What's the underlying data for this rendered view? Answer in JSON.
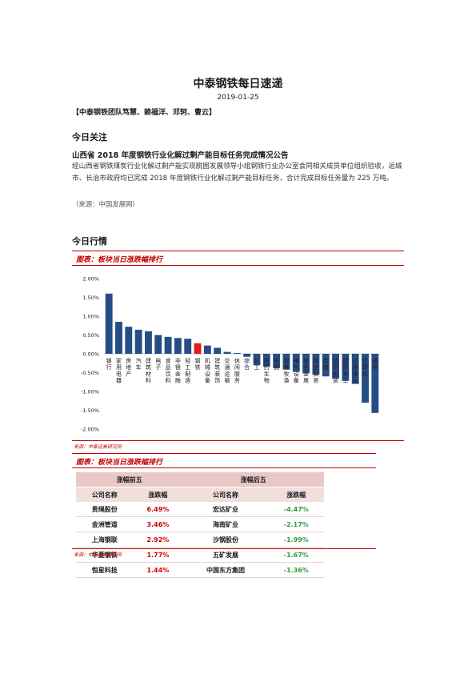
{
  "header": {
    "title": "中泰钢铁每日速递",
    "date": "2019-01-25",
    "authors": "【中泰钢铁团队笃慧、赖福洋、邓轲、曹云】"
  },
  "focus": {
    "heading": "今日关注",
    "news_title": "山西省 2018 年度钢铁行业化解过剩产能目标任务完成情况公告",
    "news_body": "经山西省钢铁煤炭行业化解过剩产能实现脱困发展领导小组钢铁行业办公室会同相关成员单位组织验收，运城市、长治市政府均已完成 2018 年度钢铁行业化解过剩产能目标任务，合计完成目标任务量为 225 万吨。",
    "news_source": "（来源：中国发展网）"
  },
  "market": {
    "heading": "今日行情",
    "figure1_label": "图表：板块当日涨跌幅排行",
    "figure1_source": "来源：中泰证券研究所",
    "figure2_label": "图表：板块当日涨跌幅排行",
    "figure2_source": "来源：中泰证券研究所"
  },
  "chart_data": {
    "type": "bar",
    "categories": [
      "银行",
      "家用电器",
      "房地产",
      "汽车",
      "建筑材料",
      "电子",
      "食品饮料",
      "非银金融",
      "轻工制造",
      "钢铁",
      "机械设备",
      "建筑装饰",
      "交通运输",
      "休闲服务",
      "综合",
      "化工",
      "医药生物",
      "采掘",
      "农林牧渔",
      "电气设备",
      "有色金属",
      "商业贸易",
      "传媒",
      "纺织服装",
      "国防军工",
      "公用事业",
      "计算机",
      "通信"
    ],
    "values": [
      1.6,
      0.85,
      0.72,
      0.64,
      0.6,
      0.5,
      0.45,
      0.42,
      0.4,
      0.28,
      0.22,
      0.16,
      0.05,
      0.02,
      -0.08,
      -0.3,
      -0.34,
      -0.38,
      -0.42,
      -0.48,
      -0.52,
      -0.56,
      -0.6,
      -0.66,
      -0.72,
      -0.8,
      -1.3,
      -1.57
    ],
    "highlight": "钢铁",
    "colors": {
      "bar": "#264d86",
      "highlight": "#e31a1a"
    },
    "yticks": [
      "2.00%",
      "1.50%",
      "1.00%",
      "0.50%",
      "0.00%",
      "-0.50%",
      "-1.00%",
      "-1.50%",
      "-2.00%"
    ],
    "ylim": [
      -2.0,
      2.0
    ]
  },
  "ranking": {
    "top_heading": "涨幅前五",
    "bottom_heading": "涨幅后五",
    "col_name": "公司名称",
    "col_change": "涨跌幅",
    "top": [
      {
        "name": "贵绳股份",
        "change": "6.49%"
      },
      {
        "name": "金洲管道",
        "change": "3.46%"
      },
      {
        "name": "上海钢联",
        "change": "2.92%"
      },
      {
        "name": "华菱钢铁",
        "change": "1.77%"
      },
      {
        "name": "恒星科技",
        "change": "1.44%"
      }
    ],
    "bottom": [
      {
        "name": "宏达矿业",
        "change": "-4.47%"
      },
      {
        "name": "海南矿业",
        "change": "-2.17%"
      },
      {
        "name": "沙钢股份",
        "change": "-1.99%"
      },
      {
        "name": "五矿发展",
        "change": "-1.67%"
      },
      {
        "name": "中国东方集团",
        "change": "-1.36%"
      }
    ]
  }
}
